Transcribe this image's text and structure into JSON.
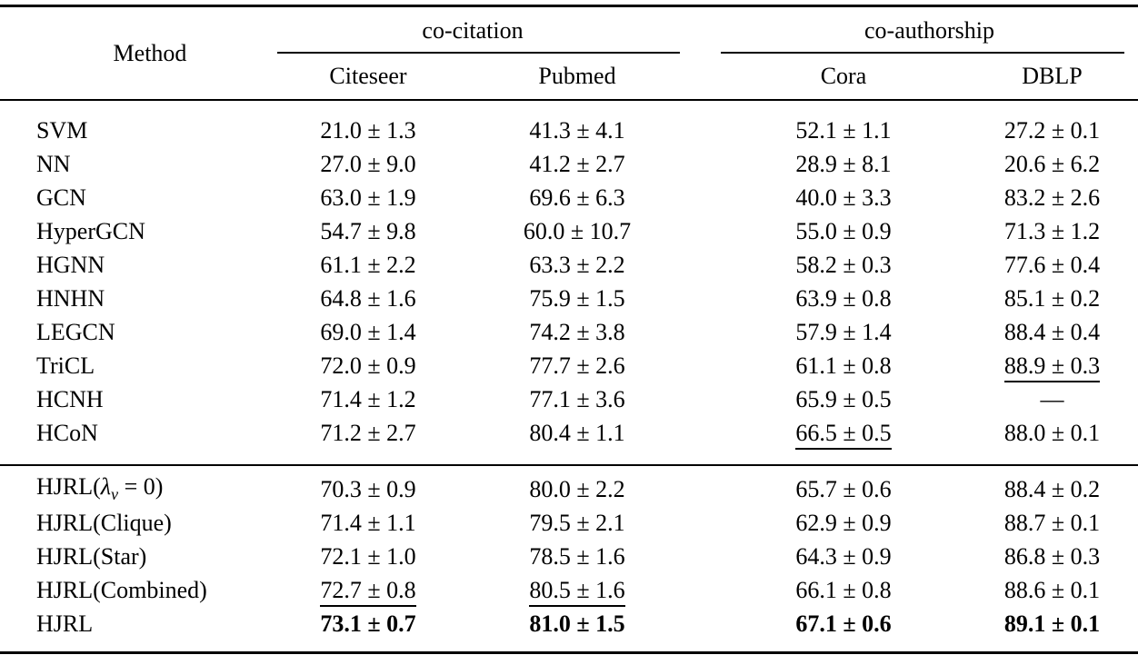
{
  "header": {
    "method": "Method",
    "groups": [
      {
        "label": "co-citation",
        "columns": [
          "Citeseer",
          "Pubmed"
        ]
      },
      {
        "label": "co-authorship",
        "columns": [
          "Cora",
          "DBLP"
        ]
      }
    ]
  },
  "sections": [
    {
      "name": "baselines",
      "rows": [
        {
          "method": "SVM",
          "cells": [
            {
              "t": "21.0 ± 1.3"
            },
            {
              "t": "41.3 ± 4.1"
            },
            {
              "t": "52.1 ± 1.1"
            },
            {
              "t": "27.2 ± 0.1"
            }
          ]
        },
        {
          "method": "NN",
          "cells": [
            {
              "t": "27.0 ± 9.0"
            },
            {
              "t": "41.2 ± 2.7"
            },
            {
              "t": "28.9 ± 8.1"
            },
            {
              "t": "20.6 ± 6.2"
            }
          ]
        },
        {
          "method": "GCN",
          "cells": [
            {
              "t": "63.0 ± 1.9"
            },
            {
              "t": "69.6 ± 6.3"
            },
            {
              "t": "40.0 ± 3.3"
            },
            {
              "t": "83.2 ± 2.6"
            }
          ]
        },
        {
          "method": "HyperGCN",
          "cells": [
            {
              "t": "54.7 ± 9.8"
            },
            {
              "t": "60.0 ± 10.7"
            },
            {
              "t": "55.0 ± 0.9"
            },
            {
              "t": "71.3 ± 1.2"
            }
          ]
        },
        {
          "method": "HGNN",
          "cells": [
            {
              "t": "61.1 ± 2.2"
            },
            {
              "t": "63.3 ± 2.2"
            },
            {
              "t": "58.2 ± 0.3"
            },
            {
              "t": "77.6 ± 0.4"
            }
          ]
        },
        {
          "method": "HNHN",
          "cells": [
            {
              "t": "64.8 ± 1.6"
            },
            {
              "t": "75.9 ± 1.5"
            },
            {
              "t": "63.9 ± 0.8"
            },
            {
              "t": "85.1 ± 0.2"
            }
          ]
        },
        {
          "method": "LEGCN",
          "cells": [
            {
              "t": "69.0 ± 1.4"
            },
            {
              "t": "74.2 ± 3.8"
            },
            {
              "t": "57.9 ± 1.4"
            },
            {
              "t": "88.4 ± 0.4"
            }
          ]
        },
        {
          "method": "TriCL",
          "cells": [
            {
              "t": "72.0 ± 0.9"
            },
            {
              "t": "77.7 ± 2.6"
            },
            {
              "t": "61.1 ± 0.8"
            },
            {
              "t": "88.9 ± 0.3",
              "u": true
            }
          ]
        },
        {
          "method": "HCNH",
          "cells": [
            {
              "t": "71.4 ± 1.2"
            },
            {
              "t": "77.1 ± 3.6"
            },
            {
              "t": "65.9 ± 0.5"
            },
            {
              "t": "—"
            }
          ]
        },
        {
          "method": "HCoN",
          "cells": [
            {
              "t": "71.2 ± 2.7"
            },
            {
              "t": "80.4 ± 1.1"
            },
            {
              "t": "66.5 ± 0.5",
              "u": true
            },
            {
              "t": "88.0 ± 0.1"
            }
          ]
        }
      ]
    },
    {
      "name": "hjrl-variants",
      "rows": [
        {
          "method_parts": {
            "pre": "HJRL(",
            "italic": "λ",
            "sub": "v",
            "post": " = 0)"
          },
          "cells": [
            {
              "t": "70.3 ± 0.9"
            },
            {
              "t": "80.0 ± 2.2"
            },
            {
              "t": "65.7 ± 0.6"
            },
            {
              "t": "88.4 ± 0.2"
            }
          ]
        },
        {
          "method": "HJRL(Clique)",
          "cells": [
            {
              "t": "71.4 ± 1.1"
            },
            {
              "t": "79.5 ± 2.1"
            },
            {
              "t": "62.9 ± 0.9"
            },
            {
              "t": "88.7 ± 0.1"
            }
          ]
        },
        {
          "method": "HJRL(Star)",
          "cells": [
            {
              "t": "72.1 ± 1.0"
            },
            {
              "t": "78.5 ± 1.6"
            },
            {
              "t": "64.3 ± 0.9"
            },
            {
              "t": "86.8 ± 0.3"
            }
          ]
        },
        {
          "method": "HJRL(Combined)",
          "cells": [
            {
              "t": "72.7 ± 0.8",
              "u": true
            },
            {
              "t": "80.5 ± 1.6",
              "u": true
            },
            {
              "t": "66.1 ± 0.8"
            },
            {
              "t": "88.6 ± 0.1"
            }
          ]
        },
        {
          "method": "HJRL",
          "cells": [
            {
              "t": "73.1 ± 0.7",
              "b": true
            },
            {
              "t": "81.0 ± 1.5",
              "b": true
            },
            {
              "t": "67.1 ± 0.6",
              "b": true
            },
            {
              "t": "89.1 ± 0.1",
              "b": true
            }
          ]
        }
      ]
    }
  ]
}
